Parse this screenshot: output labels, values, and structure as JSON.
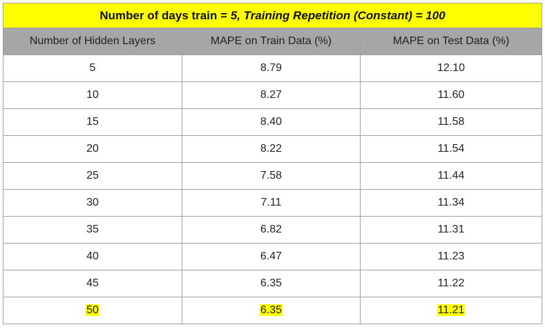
{
  "title": {
    "prefix": "Number of days train = ",
    "days_value": "5, Training Repetition (Constant) = 100"
  },
  "columns": [
    "Number of Hidden Layers",
    "MAPE on Train Data (%)",
    "MAPE on Test Data (%)"
  ],
  "rows": [
    {
      "hidden_layers": "5",
      "train": "8.79",
      "test": "12.10",
      "highlighted": false
    },
    {
      "hidden_layers": "10",
      "train": "8.27",
      "test": "11.60",
      "highlighted": false
    },
    {
      "hidden_layers": "15",
      "train": "8.40",
      "test": "11.58",
      "highlighted": false
    },
    {
      "hidden_layers": "20",
      "train": "8.22",
      "test": "11.54",
      "highlighted": false
    },
    {
      "hidden_layers": "25",
      "train": "7.58",
      "test": "11.44",
      "highlighted": false
    },
    {
      "hidden_layers": "30",
      "train": "7.11",
      "test": "11.34",
      "highlighted": false
    },
    {
      "hidden_layers": "35",
      "train": "6.82",
      "test": "11.31",
      "highlighted": false
    },
    {
      "hidden_layers": "40",
      "train": "6.47",
      "test": "11.23",
      "highlighted": false
    },
    {
      "hidden_layers": "45",
      "train": "6.35",
      "test": "11.22",
      "highlighted": false
    },
    {
      "hidden_layers": "50",
      "train": "6.35",
      "test": "11.21",
      "highlighted": true
    }
  ],
  "colors": {
    "title_background": "#ffff00",
    "header_background": "#a6a6a6",
    "highlight": "#ffff00",
    "border": "#a0a0a0"
  }
}
